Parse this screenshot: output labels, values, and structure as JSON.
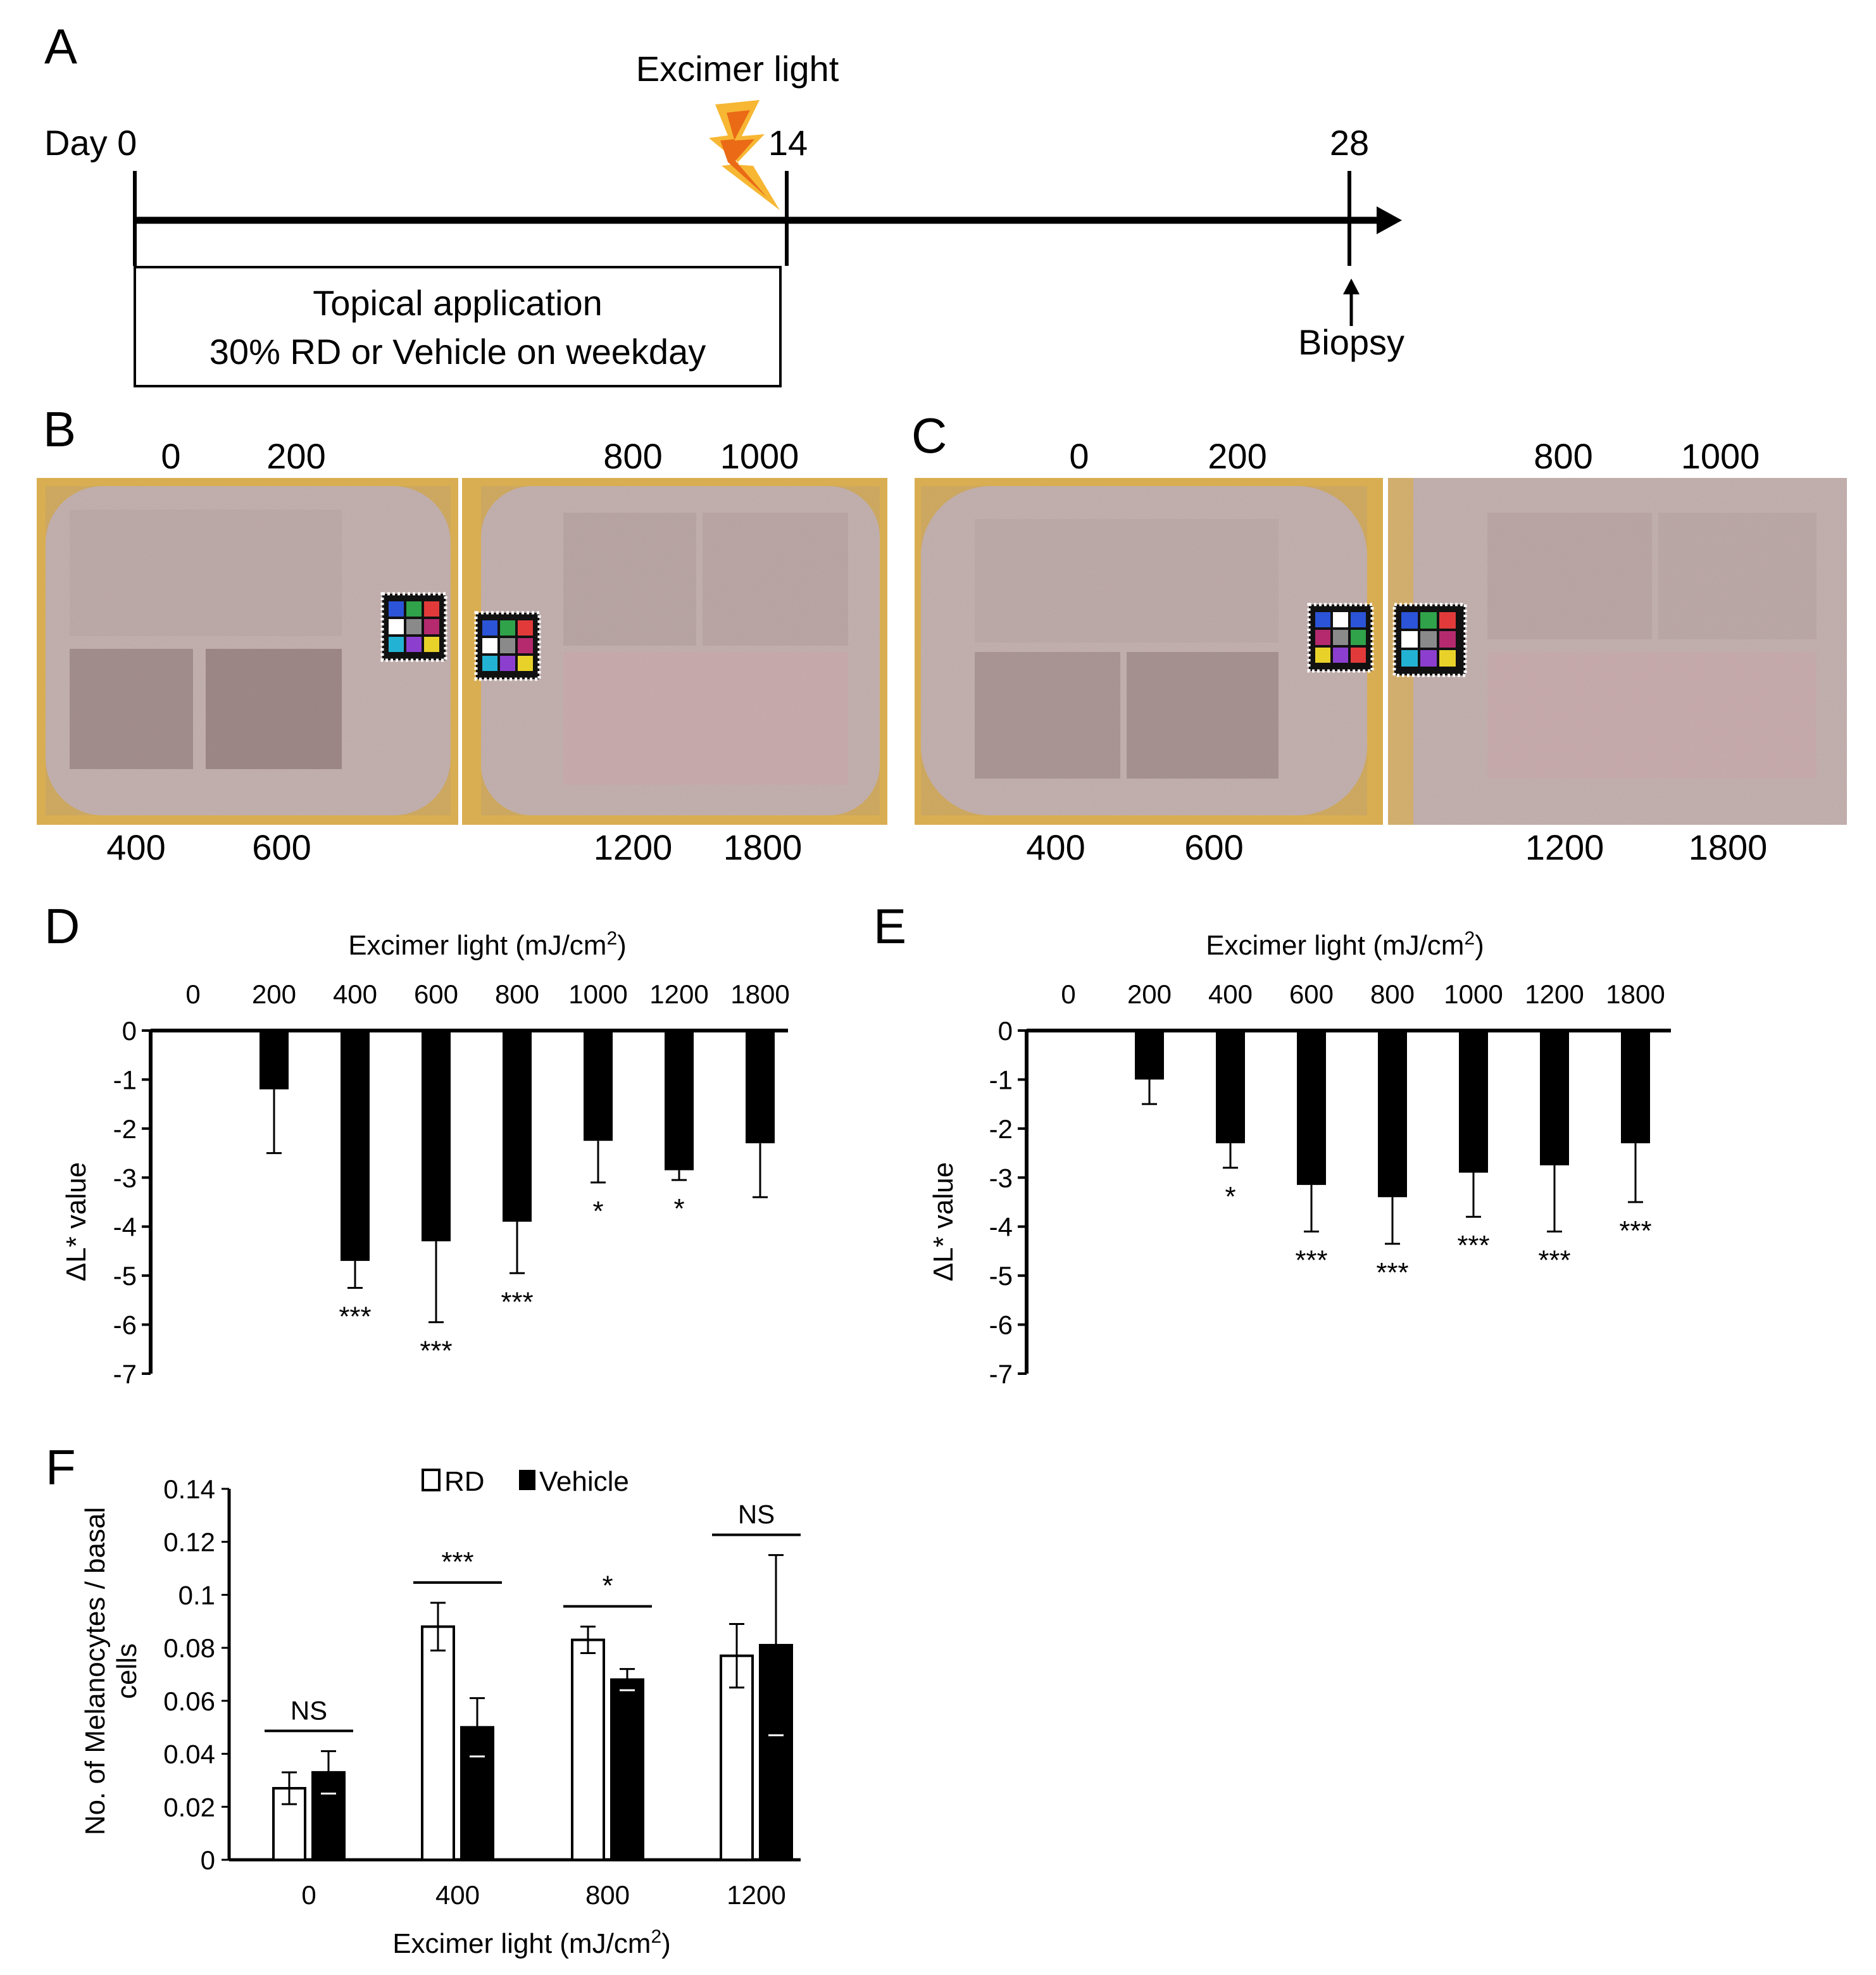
{
  "colors": {
    "ink": "#000000",
    "bolt_outer": "#f7b733",
    "bolt_inner": "#ea6a16",
    "skin": "#c9b6b4",
    "skin_dark": "#a48f90",
    "fur": "#d9ae52",
    "patch": "#7d6466"
  },
  "panels": {
    "A": "A",
    "B": "B",
    "C": "C",
    "D": "D",
    "E": "E",
    "F": "F"
  },
  "timeline": {
    "day0": "Day 0",
    "day14": "14",
    "day28": "28",
    "excimer": "Excimer light",
    "box_line1": "Topical application",
    "box_line2": "30% RD or Vehicle on weekday",
    "biopsy": "Biopsy",
    "bolt_icon": "lightning-bolt-icon"
  },
  "photo_b": {
    "top_left": [
      "0",
      "200"
    ],
    "top_right": [
      "800",
      "1000"
    ],
    "bottom_left": [
      "400",
      "600"
    ],
    "bottom_right": [
      "1200",
      "1800"
    ],
    "color_card_icon": "color-checker-card"
  },
  "photo_c": {
    "top_left": [
      "0",
      "200"
    ],
    "top_right": [
      "800",
      "1000"
    ],
    "bottom_left": [
      "400",
      "600"
    ],
    "bottom_right": [
      "1200",
      "1800"
    ],
    "color_card_icon": "color-checker-card"
  },
  "chart_data": [
    {
      "id": "D",
      "type": "bar",
      "title": "Excimer light (mJ/cm2)",
      "title_main": "Excimer light (mJ/cm",
      "title_sup": "2",
      "title_end": ")",
      "ylabel": "ΔL* value",
      "categories": [
        "0",
        "200",
        "400",
        "600",
        "800",
        "1000",
        "1200",
        "1800"
      ],
      "values": [
        0,
        -1.2,
        -4.7,
        -4.3,
        -3.9,
        -2.25,
        -2.85,
        -2.3
      ],
      "errors": [
        0,
        1.3,
        0.55,
        1.65,
        1.05,
        0.85,
        0.2,
        1.1
      ],
      "significance": [
        "",
        "",
        "***",
        "***",
        "***",
        "*",
        "*",
        ""
      ],
      "ylim": [
        -7,
        0
      ],
      "yticks": [
        "0",
        "-1",
        "-2",
        "-3",
        "-4",
        "-5",
        "-6",
        "-7"
      ]
    },
    {
      "id": "E",
      "type": "bar",
      "title": "Excimer light (mJ/cm2)",
      "title_main": "Excimer light (mJ/cm",
      "title_sup": "2",
      "title_end": ")",
      "ylabel": "ΔL* value",
      "categories": [
        "0",
        "200",
        "400",
        "600",
        "800",
        "1000",
        "1200",
        "1800"
      ],
      "values": [
        0,
        -1.0,
        -2.3,
        -3.15,
        -3.4,
        -2.9,
        -2.75,
        -2.3
      ],
      "errors": [
        0,
        0.5,
        0.5,
        0.95,
        0.95,
        0.9,
        1.35,
        1.2
      ],
      "significance": [
        "",
        "",
        "*",
        "***",
        "***",
        "***",
        "***",
        "***"
      ],
      "ylim": [
        -7,
        0
      ],
      "yticks": [
        "0",
        "-1",
        "-2",
        "-3",
        "-4",
        "-5",
        "-6",
        "-7"
      ]
    },
    {
      "id": "F",
      "type": "bar",
      "title": "",
      "xlabel": "Excimer light (mJ/cm2)",
      "xlabel_main": "Excimer light (mJ/cm",
      "xlabel_sup": "2",
      "xlabel_end": ")",
      "ylabel_line1": "No. of Melanocytes / basal",
      "ylabel_line2": "cells",
      "categories": [
        "0",
        "400",
        "800",
        "1200"
      ],
      "series": [
        {
          "name": "RD",
          "values": [
            0.027,
            0.088,
            0.083,
            0.077
          ],
          "errors": [
            0.006,
            0.009,
            0.005,
            0.012
          ],
          "fill": "#ffffff"
        },
        {
          "name": "Vehicle",
          "values": [
            0.033,
            0.05,
            0.068,
            0.081
          ],
          "errors": [
            0.008,
            0.011,
            0.004,
            0.034
          ],
          "fill": "#000000"
        }
      ],
      "significance": [
        "NS",
        "***",
        "*",
        "NS"
      ],
      "ylim": [
        0,
        0.14
      ],
      "yticks": [
        "0",
        "0.02",
        "0.04",
        "0.06",
        "0.08",
        "0.1",
        "0.12",
        "0.14"
      ],
      "legend_position": "top-center"
    }
  ]
}
